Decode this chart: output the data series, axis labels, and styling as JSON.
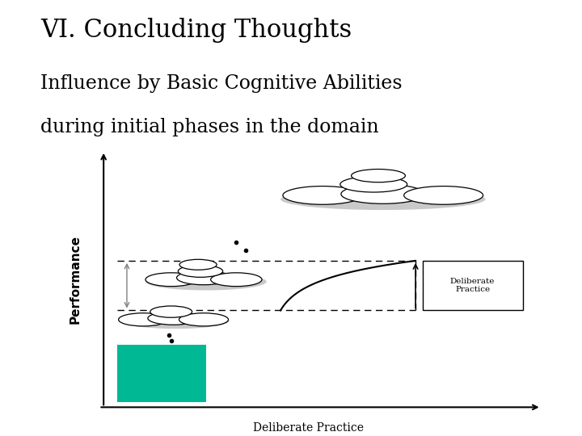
{
  "title_line1": "VI. Concluding Thoughts",
  "title_line2": "Influence by Basic Cognitive Abilities\nduring initial phases in the domain",
  "title_fontsize": 22,
  "subtitle_fontsize": 17,
  "bg_color": "#ffffff",
  "ylabel": "Performance",
  "xlabel": "Deliberate Practice",
  "green_color": "#00b894",
  "shadow_color": "#b8b8b8",
  "ellipse_face": "#ffffff",
  "ellipse_edge": "#000000"
}
